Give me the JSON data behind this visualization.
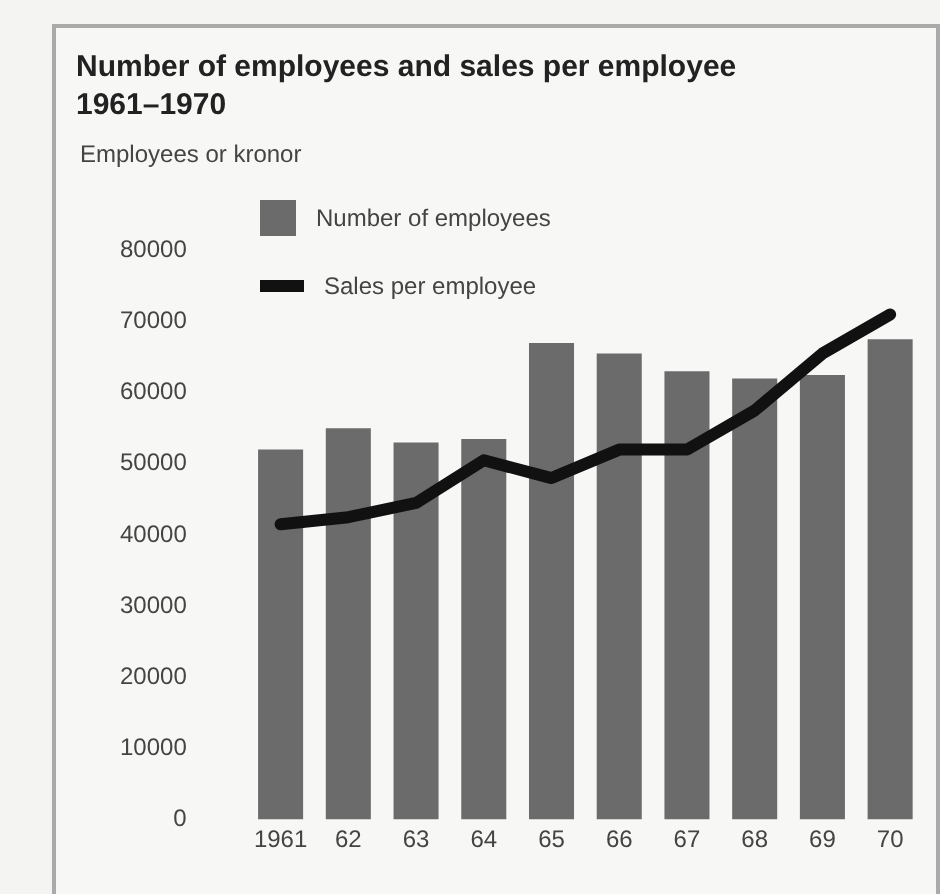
{
  "chart_data": {
    "type": "bar",
    "title": "Number of employees and sales per employee\n1961–1970",
    "ylabel": "Employees or kronor",
    "categories": [
      "1961",
      "62",
      "63",
      "64",
      "65",
      "66",
      "67",
      "68",
      "69",
      "70"
    ],
    "series": [
      {
        "name": "Number of employees",
        "color": "#6b6b6b",
        "values": [
          52000,
          55000,
          53000,
          53500,
          67000,
          65500,
          63000,
          62000,
          62500,
          67500
        ]
      },
      {
        "name": "Sales per employee",
        "type": "line",
        "color": "#111111",
        "values": [
          41500,
          42500,
          44500,
          50500,
          48000,
          52000,
          52000,
          57500,
          65500,
          71000
        ]
      }
    ],
    "ylim": [
      0,
      80000
    ],
    "yticks": [
      0,
      10000,
      20000,
      30000,
      40000,
      50000,
      60000,
      70000,
      80000
    ],
    "grid": false,
    "legend": "top left",
    "marker": "none"
  }
}
